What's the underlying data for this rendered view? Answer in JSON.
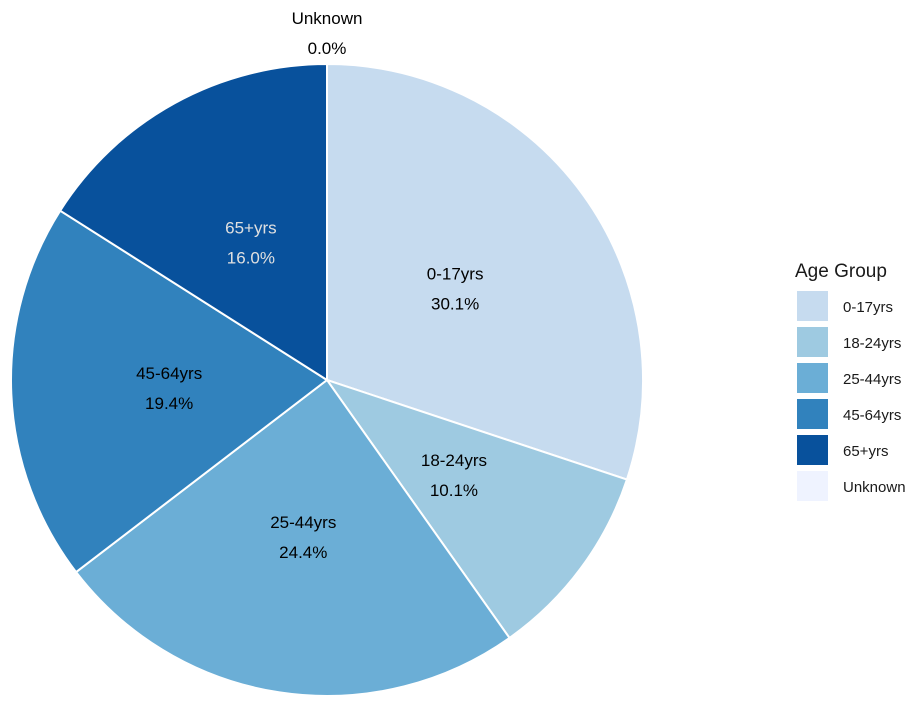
{
  "chart_data": {
    "type": "pie",
    "legend_title": "Age Group",
    "legend_position": "right",
    "categories": [
      "0-17yrs",
      "18-24yrs",
      "25-44yrs",
      "45-64yrs",
      "65+yrs",
      "Unknown"
    ],
    "values": [
      30.1,
      10.1,
      24.4,
      19.4,
      16.0,
      0.0
    ],
    "labels": [
      "30.1%",
      "10.1%",
      "24.4%",
      "19.4%",
      "16.0%",
      "0.0%"
    ],
    "colors": [
      "#c6dbef",
      "#9ecae1",
      "#6baed6",
      "#3182bd",
      "#08519c",
      "#eff3ff"
    ],
    "label_colors": [
      "#000000",
      "#000000",
      "#000000",
      "#000000",
      "#e0e0e0",
      "#000000"
    ],
    "start_angle": "12 o'clock",
    "direction": "clockwise"
  }
}
